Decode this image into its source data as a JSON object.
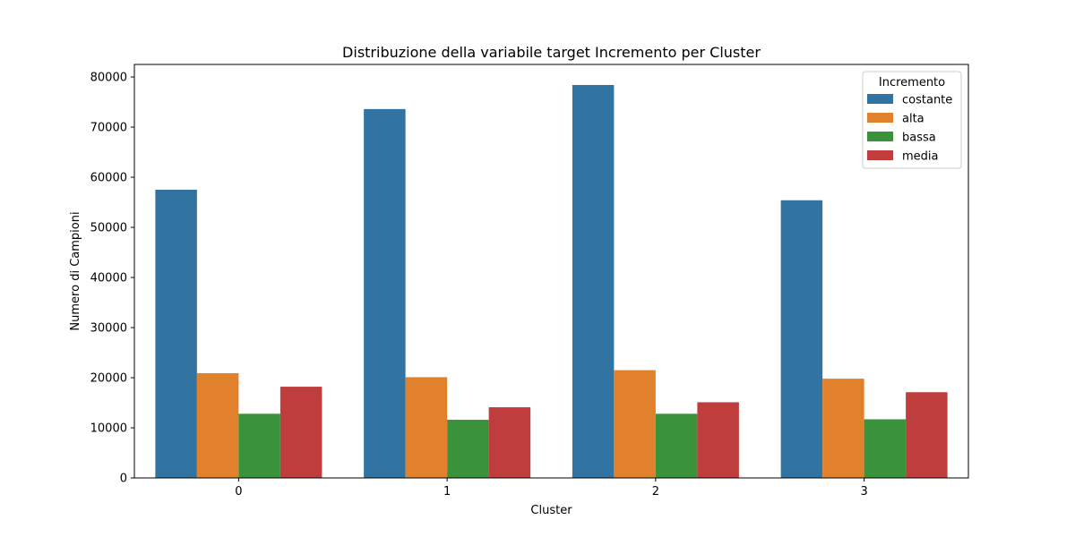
{
  "chart_data": {
    "type": "bar",
    "title": "Distribuzione della variabile target Incremento per Cluster",
    "xlabel": "Cluster",
    "ylabel": "Numero di Campioni",
    "categories": [
      "0",
      "1",
      "2",
      "3"
    ],
    "ylim": [
      0,
      82500
    ],
    "yticks": [
      0,
      10000,
      20000,
      30000,
      40000,
      50000,
      60000,
      70000,
      80000
    ],
    "grid": false,
    "legend": {
      "title": "Incremento",
      "placement": "top-right"
    },
    "series": [
      {
        "name": "costante",
        "color": "#3274a1",
        "values": [
          57500,
          73600,
          78400,
          55400
        ]
      },
      {
        "name": "alta",
        "color": "#e1812c",
        "values": [
          20900,
          20100,
          21500,
          19800
        ]
      },
      {
        "name": "bassa",
        "color": "#3a923a",
        "values": [
          12800,
          11600,
          12800,
          11700
        ]
      },
      {
        "name": "media",
        "color": "#c03d3e",
        "values": [
          18200,
          14100,
          15100,
          17100
        ]
      }
    ]
  }
}
